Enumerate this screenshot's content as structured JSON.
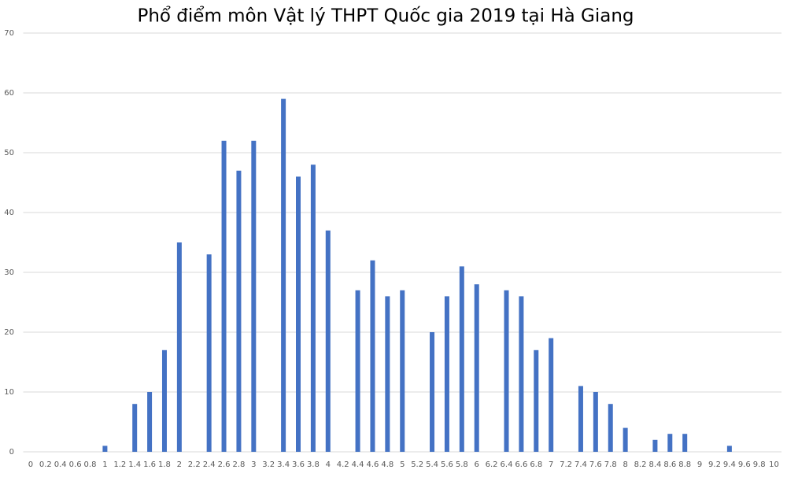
{
  "chart_data": {
    "type": "bar",
    "title": "Phổ điểm môn Vật lý THPT Quốc gia 2019 tại Hà Giang",
    "categories": [
      "0",
      "0.2",
      "0.4",
      "0.6",
      "0.8",
      "1",
      "1.2",
      "1.4",
      "1.6",
      "1.8",
      "2",
      "2.2",
      "2.4",
      "2.6",
      "2.8",
      "3",
      "3.2",
      "3.4",
      "3.6",
      "3.8",
      "4",
      "4.2",
      "4.4",
      "4.6",
      "4.8",
      "5",
      "5.2",
      "5.4",
      "5.6",
      "5.8",
      "6",
      "6.2",
      "6.4",
      "6.6",
      "6.8",
      "7",
      "7.2",
      "7.4",
      "7.6",
      "7.8",
      "8",
      "8.2",
      "8.4",
      "8.6",
      "8.8",
      "9",
      "9.2",
      "9.4",
      "9.6",
      "9.8",
      "10"
    ],
    "values": [
      0,
      0,
      0,
      0,
      0,
      1,
      0,
      8,
      10,
      17,
      35,
      0,
      33,
      52,
      47,
      52,
      0,
      59,
      46,
      48,
      37,
      0,
      27,
      32,
      26,
      27,
      0,
      20,
      26,
      31,
      28,
      0,
      27,
      26,
      17,
      19,
      0,
      11,
      10,
      8,
      4,
      0,
      2,
      3,
      3,
      0,
      0,
      1,
      0,
      0,
      0
    ],
    "color": "#4472c4",
    "ylim": [
      0,
      70
    ],
    "yticks": [
      0,
      10,
      20,
      30,
      40,
      50,
      60,
      70
    ],
    "grid": true
  }
}
